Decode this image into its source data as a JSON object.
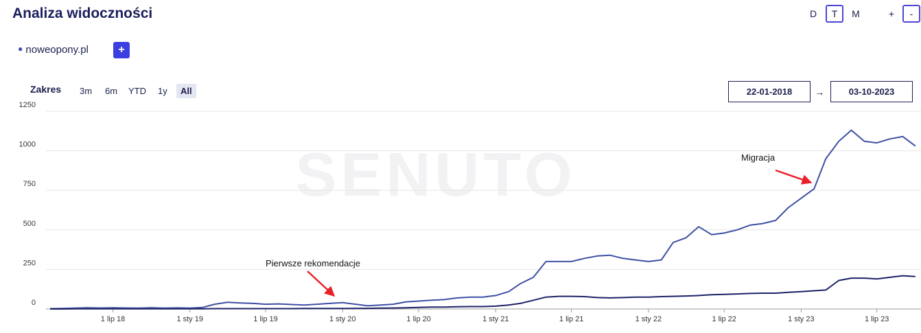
{
  "header": {
    "title": "Analiza widoczności",
    "view_buttons": [
      "D",
      "T",
      "M"
    ],
    "zoom_buttons": [
      "+",
      "-"
    ]
  },
  "domain": {
    "name": "noweopony.pl",
    "add_button": "+"
  },
  "range": {
    "label": "Zakres",
    "options": [
      "3m",
      "6m",
      "YTD",
      "1y",
      "All"
    ],
    "date_from": "22-01-2018",
    "arrow": "→",
    "date_to": "03-10-2023"
  },
  "chart_data": {
    "type": "line",
    "watermark": "SENUTO",
    "x": [
      "2018-02-01",
      "2018-03-01",
      "2018-04-01",
      "2018-05-01",
      "2018-06-01",
      "2018-07-01",
      "2018-08-01",
      "2018-09-01",
      "2018-10-01",
      "2018-11-01",
      "2018-12-01",
      "2019-01-01",
      "2019-02-01",
      "2019-03-01",
      "2019-04-01",
      "2019-05-01",
      "2019-06-01",
      "2019-07-01",
      "2019-08-01",
      "2019-09-01",
      "2019-10-01",
      "2019-11-01",
      "2019-12-01",
      "2020-01-01",
      "2020-02-01",
      "2020-03-01",
      "2020-04-01",
      "2020-05-01",
      "2020-06-01",
      "2020-07-01",
      "2020-08-01",
      "2020-09-01",
      "2020-10-01",
      "2020-11-01",
      "2020-12-01",
      "2021-01-01",
      "2021-02-01",
      "2021-03-01",
      "2021-04-01",
      "2021-05-01",
      "2021-06-01",
      "2021-07-01",
      "2021-08-01",
      "2021-09-01",
      "2021-10-01",
      "2021-11-01",
      "2021-12-01",
      "2022-01-01",
      "2022-02-01",
      "2022-03-01",
      "2022-04-01",
      "2022-05-01",
      "2022-06-01",
      "2022-07-01",
      "2022-08-01",
      "2022-09-01",
      "2022-10-01",
      "2022-11-01",
      "2022-12-01",
      "2023-01-01",
      "2023-02-01",
      "2023-03-01",
      "2023-04-01",
      "2023-05-01",
      "2023-06-01",
      "2023-07-01",
      "2023-08-01",
      "2023-09-01",
      "2023-10-01"
    ],
    "series": [
      {
        "name": "noweopony.pl",
        "color": "#3d4fa3",
        "values": [
          2,
          3,
          5,
          8,
          6,
          8,
          6,
          5,
          8,
          5,
          7,
          5,
          10,
          30,
          42,
          38,
          35,
          30,
          32,
          28,
          25,
          30,
          35,
          40,
          30,
          20,
          25,
          30,
          45,
          50,
          55,
          60,
          70,
          75,
          75,
          85,
          110,
          160,
          200,
          300,
          300,
          300,
          320,
          335,
          340,
          320,
          310,
          300,
          310,
          420,
          450,
          520,
          470,
          480,
          500,
          530,
          540,
          560,
          640,
          700,
          760,
          950,
          1060,
          1130,
          1060,
          1050,
          1075,
          1090,
          1030
        ]
      },
      {
        "color": "#1b2266",
        "values": [
          0,
          0,
          1,
          1,
          1,
          1,
          1,
          1,
          1,
          1,
          1,
          1,
          1,
          2,
          2,
          2,
          2,
          2,
          2,
          2,
          3,
          3,
          3,
          3,
          4,
          4,
          5,
          6,
          8,
          10,
          12,
          12,
          14,
          15,
          15,
          18,
          25,
          35,
          55,
          75,
          80,
          80,
          78,
          72,
          70,
          72,
          75,
          75,
          78,
          80,
          82,
          85,
          90,
          92,
          95,
          98,
          100,
          100,
          105,
          110,
          115,
          120,
          180,
          195,
          195,
          190,
          200,
          210,
          205
        ]
      }
    ],
    "xlim": [
      "2018-01-22",
      "2023-10-03"
    ],
    "xticks": [
      {
        "value": "2018-07-01",
        "label": "1 lip 18"
      },
      {
        "value": "2019-01-01",
        "label": "1 sty 19"
      },
      {
        "value": "2019-07-01",
        "label": "1 lip 19"
      },
      {
        "value": "2020-01-01",
        "label": "1 sty 20"
      },
      {
        "value": "2020-07-01",
        "label": "1 lip 20"
      },
      {
        "value": "2021-01-01",
        "label": "1 sty 21"
      },
      {
        "value": "2021-07-01",
        "label": "1 lip 21"
      },
      {
        "value": "2022-01-01",
        "label": "1 sty 22"
      },
      {
        "value": "2022-07-01",
        "label": "1 lip 22"
      },
      {
        "value": "2023-01-01",
        "label": "1 sty 23"
      },
      {
        "value": "2023-07-01",
        "label": "1 lip 23"
      }
    ],
    "ylim": [
      0,
      1250
    ],
    "yticks": [
      0,
      250,
      500,
      750,
      1000,
      1250
    ],
    "grid": true,
    "annotations": [
      {
        "text": "Pierwsze rekomendacje"
      },
      {
        "text": "Migracja"
      }
    ]
  }
}
